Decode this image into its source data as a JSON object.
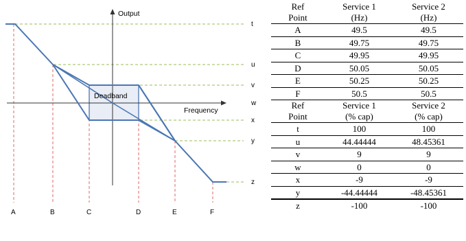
{
  "diagram": {
    "axis_y_label": "Output",
    "axis_x_label": "Frequency",
    "deadband_label": "Deadband",
    "x_points": [
      "A",
      "B",
      "C",
      "D",
      "E",
      "F"
    ],
    "y_levels": [
      "t",
      "u",
      "v",
      "w",
      "x",
      "y",
      "z"
    ]
  },
  "table": {
    "freq_header": {
      "col0": [
        "Ref",
        "Point"
      ],
      "col1": [
        "Service 1",
        "(Hz)"
      ],
      "col2": [
        "Service 2",
        "(Hz)"
      ]
    },
    "freq_rows": [
      {
        "point": "A",
        "s1": "49.5",
        "s2": "49.5"
      },
      {
        "point": "B",
        "s1": "49.75",
        "s2": "49.75"
      },
      {
        "point": "C",
        "s1": "49.95",
        "s2": "49.95"
      },
      {
        "point": "D",
        "s1": "50.05",
        "s2": "50.05"
      },
      {
        "point": "E",
        "s1": "50.25",
        "s2": "50.25"
      },
      {
        "point": "F",
        "s1": "50.5",
        "s2": "50.5"
      }
    ],
    "cap_header": {
      "col0": [
        "Ref",
        "Point"
      ],
      "col1": [
        "Service 1",
        "(% cap)"
      ],
      "col2": [
        "Service 2",
        "(% cap)"
      ]
    },
    "cap_rows": [
      {
        "point": "t",
        "s1": "100",
        "s2": "100"
      },
      {
        "point": "u",
        "s1": "44.44444",
        "s2": "48.45361"
      },
      {
        "point": "v",
        "s1": "9",
        "s2": "9"
      },
      {
        "point": "w",
        "s1": "0",
        "s2": "0"
      },
      {
        "point": "x",
        "s1": "-9",
        "s2": "-9"
      },
      {
        "point": "y",
        "s1": "-44.44444",
        "s2": "-48.45361"
      },
      {
        "point": "z",
        "s1": "-100",
        "s2": "-100"
      }
    ]
  },
  "colors": {
    "line": "#4a76b3",
    "dash_green": "#9bbb59",
    "dash_red": "#e06666",
    "deadband_fill": "#e8edf6"
  }
}
